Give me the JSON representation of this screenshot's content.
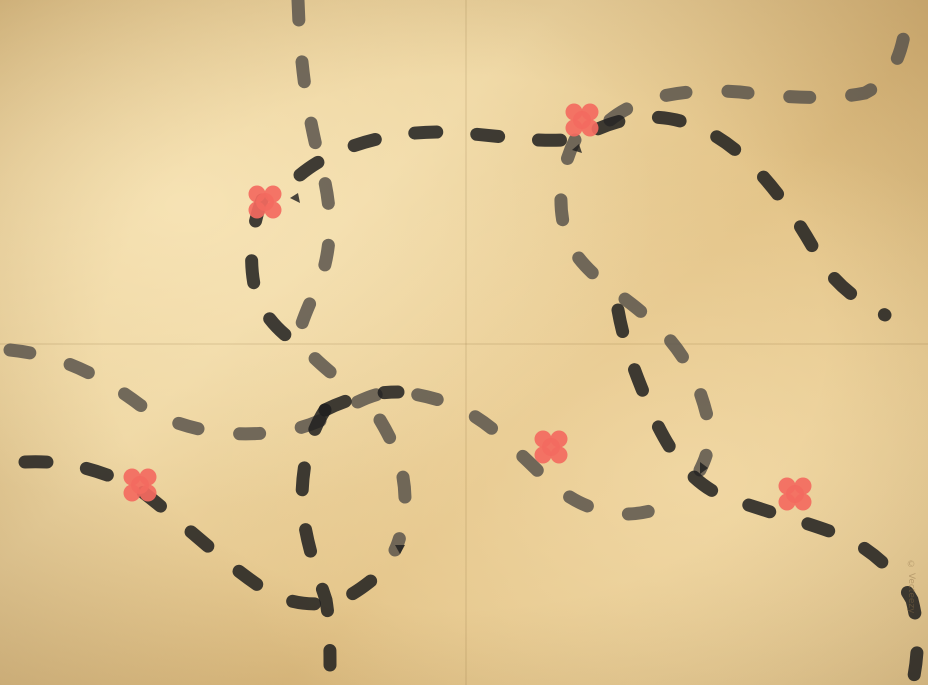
{
  "map": {
    "theme_colors": {
      "parchment": "#e6c98e",
      "trail_dark": "#1e1e1e",
      "trail_faded": "#5b554c",
      "marker": "#f36a5f"
    },
    "markers": [
      {
        "id": "marker-1",
        "icon": "treasure-x-icon"
      },
      {
        "id": "marker-2",
        "icon": "treasure-x-icon"
      },
      {
        "id": "marker-3",
        "icon": "treasure-x-icon"
      },
      {
        "id": "marker-4",
        "icon": "treasure-x-icon"
      },
      {
        "id": "marker-5",
        "icon": "treasure-x-icon"
      }
    ],
    "trails": [
      {
        "id": "trail-dark",
        "style": "dark"
      },
      {
        "id": "trail-faded",
        "style": "faded"
      }
    ],
    "watermark_text": "© Vecteezy"
  }
}
